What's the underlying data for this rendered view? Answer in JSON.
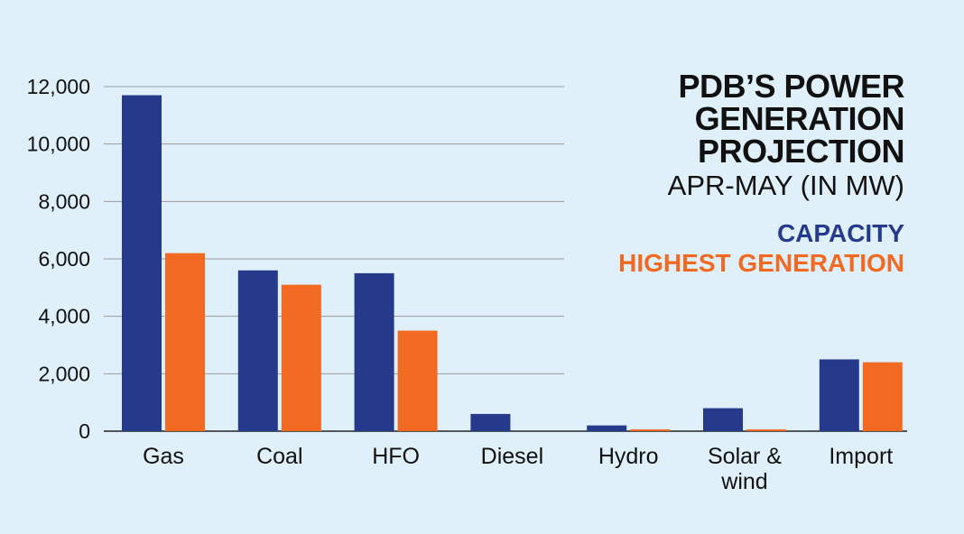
{
  "title": {
    "lines": [
      "PDB’S POWER",
      "GENERATION",
      "PROJECTION"
    ],
    "subtitle": "APR-MAY (IN MW)"
  },
  "legend": [
    {
      "label": "CAPACITY",
      "color": "#263a8c"
    },
    {
      "label": "HIGHEST GENERATION",
      "color": "#f26a21"
    }
  ],
  "chart_data": {
    "type": "bar",
    "categories": [
      [
        "Gas"
      ],
      [
        "Coal"
      ],
      [
        "HFO"
      ],
      [
        "Diesel"
      ],
      [
        "Hydro"
      ],
      [
        "Solar &",
        "wind"
      ],
      [
        "Import"
      ]
    ],
    "series": [
      {
        "name": "CAPACITY",
        "color": "#263a8c",
        "values": [
          11700,
          5600,
          5500,
          600,
          200,
          800,
          2500
        ]
      },
      {
        "name": "HIGHEST GENERATION",
        "color": "#f26a21",
        "values": [
          6200,
          5100,
          3500,
          0,
          50,
          50,
          2400
        ]
      }
    ],
    "ylim": [
      0,
      12000
    ],
    "yticks": [
      0,
      2000,
      4000,
      6000,
      8000,
      10000,
      12000
    ],
    "ytick_labels": [
      "0",
      "2,000",
      "4,000",
      "6,000",
      "8,000",
      "10,000",
      "12,000"
    ],
    "grid": true,
    "legend_position": "top-right"
  }
}
